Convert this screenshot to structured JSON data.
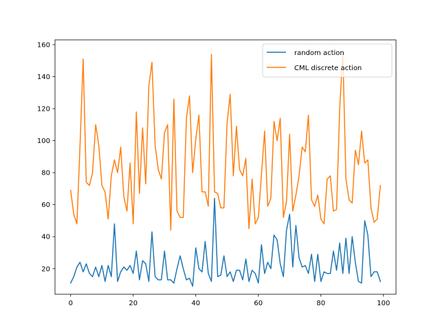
{
  "chart_data": {
    "type": "line",
    "title": "",
    "xlabel": "",
    "ylabel": "",
    "xlim": [
      -5,
      104
    ],
    "ylim": [
      4,
      163
    ],
    "xticks": [
      0,
      20,
      40,
      60,
      80,
      100
    ],
    "yticks": [
      20,
      40,
      60,
      80,
      100,
      120,
      140,
      160
    ],
    "legend_position": "top-right",
    "grid": false,
    "series": [
      {
        "name": "random action",
        "color": "#1f77b4",
        "values": [
          11,
          15,
          21,
          24,
          18,
          23,
          17,
          15,
          21,
          15,
          22,
          12,
          22,
          15,
          48,
          12,
          18,
          21,
          19,
          22,
          17,
          31,
          13,
          25,
          23,
          12,
          43,
          15,
          13,
          13,
          31,
          13,
          13,
          11,
          20,
          28,
          20,
          13,
          14,
          9,
          33,
          20,
          18,
          37,
          17,
          12,
          64,
          15,
          16,
          28,
          15,
          18,
          12,
          19,
          19,
          13,
          26,
          12,
          19,
          17,
          11,
          35,
          17,
          24,
          20,
          41,
          38,
          23,
          15,
          44,
          54,
          21,
          47,
          27,
          21,
          22,
          17,
          29,
          12,
          29,
          12,
          18,
          17,
          17,
          31,
          19,
          36,
          17,
          39,
          17,
          40,
          24,
          12,
          11,
          50,
          41,
          15,
          18,
          18,
          12
        ]
      },
      {
        "name": "CML discrete action",
        "color": "#ff7f0e",
        "values": [
          69,
          54,
          48,
          97,
          151,
          74,
          72,
          80,
          110,
          97,
          72,
          68,
          51,
          78,
          88,
          80,
          96,
          65,
          56,
          86,
          48,
          118,
          67,
          108,
          73,
          134,
          149,
          97,
          82,
          76,
          105,
          110,
          44,
          126,
          56,
          52,
          52,
          114,
          128,
          80,
          101,
          116,
          68,
          68,
          59,
          154,
          68,
          67,
          58,
          58,
          111,
          129,
          78,
          109,
          82,
          78,
          89,
          45,
          76,
          48,
          52,
          79,
          106,
          59,
          64,
          112,
          100,
          114,
          52,
          62,
          104,
          56,
          66,
          78,
          96,
          93,
          116,
          63,
          59,
          66,
          51,
          48,
          76,
          78,
          56,
          57,
          120,
          155,
          76,
          63,
          61,
          94,
          85,
          106,
          86,
          88,
          58,
          49,
          51,
          72
        ]
      }
    ]
  }
}
